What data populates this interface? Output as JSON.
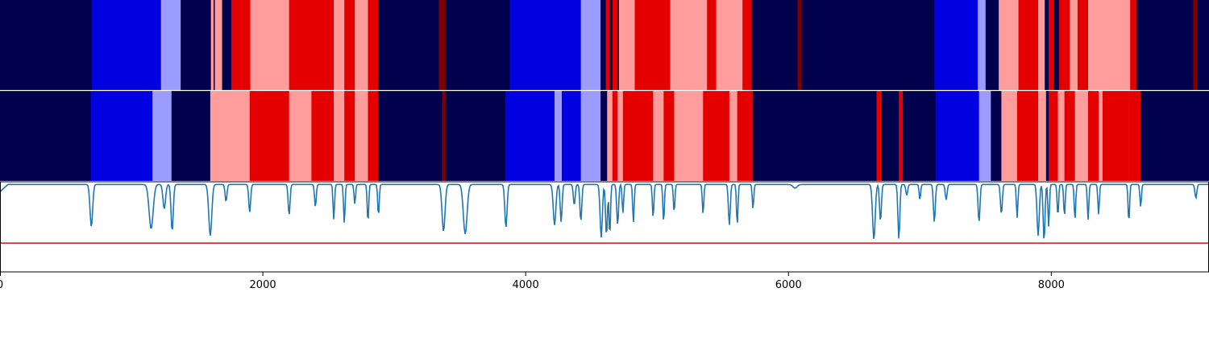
{
  "chart_data": [
    {
      "type": "heatmap",
      "panel": "top-segmentation",
      "x_range": [
        0,
        9200
      ],
      "colors": {
        "0": "#00004c",
        "1": "#0000e0",
        "2": "#9c9cff",
        "3": "#ff9c9c",
        "4": "#e50000",
        "5": "#800000"
      },
      "segments": [
        [
          0,
          700,
          0
        ],
        [
          700,
          1225,
          1
        ],
        [
          1225,
          1375,
          2
        ],
        [
          1375,
          1605,
          0
        ],
        [
          1605,
          1625,
          3
        ],
        [
          1625,
          1635,
          0
        ],
        [
          1635,
          1690,
          3
        ],
        [
          1690,
          1760,
          0
        ],
        [
          1760,
          1905,
          4
        ],
        [
          1905,
          2200,
          3
        ],
        [
          2200,
          2370,
          4
        ],
        [
          2370,
          2540,
          4
        ],
        [
          2540,
          2620,
          3
        ],
        [
          2620,
          2700,
          4
        ],
        [
          2700,
          2800,
          3
        ],
        [
          2800,
          2880,
          4
        ],
        [
          2880,
          3340,
          0
        ],
        [
          3340,
          3390,
          5
        ],
        [
          3390,
          3880,
          0
        ],
        [
          3880,
          4420,
          1
        ],
        [
          4420,
          4570,
          2
        ],
        [
          4570,
          4610,
          0
        ],
        [
          4610,
          4640,
          4
        ],
        [
          4640,
          4660,
          0
        ],
        [
          4660,
          4700,
          4
        ],
        [
          4700,
          4710,
          0
        ],
        [
          4710,
          4830,
          3
        ],
        [
          4830,
          5100,
          4
        ],
        [
          5100,
          5380,
          3
        ],
        [
          5380,
          5450,
          4
        ],
        [
          5450,
          5650,
          3
        ],
        [
          5650,
          5720,
          4
        ],
        [
          5720,
          6070,
          0
        ],
        [
          6070,
          6100,
          5
        ],
        [
          6100,
          7110,
          0
        ],
        [
          7110,
          7440,
          1
        ],
        [
          7440,
          7500,
          2
        ],
        [
          7500,
          7600,
          0
        ],
        [
          7600,
          7750,
          3
        ],
        [
          7750,
          7900,
          4
        ],
        [
          7900,
          7950,
          3
        ],
        [
          7950,
          7980,
          0
        ],
        [
          7980,
          8020,
          4
        ],
        [
          8020,
          8060,
          0
        ],
        [
          8060,
          8140,
          4
        ],
        [
          8140,
          8200,
          3
        ],
        [
          8200,
          8280,
          4
        ],
        [
          8280,
          8600,
          3
        ],
        [
          8600,
          8650,
          4
        ],
        [
          8650,
          9080,
          0
        ],
        [
          9080,
          9110,
          5
        ],
        [
          9110,
          9200,
          0
        ]
      ]
    },
    {
      "type": "heatmap",
      "panel": "middle-segmentation",
      "x_range": [
        0,
        9200
      ],
      "colors": {
        "0": "#00004c",
        "1": "#0000e0",
        "2": "#9c9cff",
        "3": "#ff9c9c",
        "4": "#e50000",
        "5": "#800000"
      },
      "segments": [
        [
          0,
          690,
          0
        ],
        [
          690,
          1160,
          1
        ],
        [
          1160,
          1305,
          2
        ],
        [
          1305,
          1600,
          0
        ],
        [
          1600,
          1900,
          3
        ],
        [
          1900,
          2200,
          4
        ],
        [
          2200,
          2370,
          3
        ],
        [
          2370,
          2540,
          4
        ],
        [
          2540,
          2620,
          3
        ],
        [
          2620,
          2700,
          4
        ],
        [
          2700,
          2800,
          3
        ],
        [
          2800,
          2880,
          4
        ],
        [
          2880,
          3365,
          0
        ],
        [
          3365,
          3390,
          5
        ],
        [
          3390,
          3845,
          0
        ],
        [
          3845,
          4220,
          1
        ],
        [
          4220,
          4275,
          2
        ],
        [
          4275,
          4420,
          1
        ],
        [
          4420,
          4570,
          2
        ],
        [
          4570,
          4620,
          0
        ],
        [
          4620,
          4660,
          3
        ],
        [
          4660,
          4700,
          4
        ],
        [
          4700,
          4740,
          3
        ],
        [
          4740,
          4820,
          4
        ],
        [
          4820,
          4970,
          4
        ],
        [
          4970,
          5050,
          3
        ],
        [
          5050,
          5130,
          4
        ],
        [
          5130,
          5350,
          3
        ],
        [
          5350,
          5550,
          4
        ],
        [
          5550,
          5610,
          3
        ],
        [
          5610,
          5730,
          4
        ],
        [
          5730,
          6670,
          0
        ],
        [
          6670,
          6710,
          4
        ],
        [
          6710,
          6840,
          0
        ],
        [
          6840,
          6870,
          4
        ],
        [
          6870,
          7120,
          0
        ],
        [
          7120,
          7450,
          1
        ],
        [
          7450,
          7540,
          2
        ],
        [
          7540,
          7620,
          0
        ],
        [
          7620,
          7740,
          3
        ],
        [
          7740,
          7900,
          4
        ],
        [
          7900,
          7960,
          3
        ],
        [
          7960,
          7980,
          0
        ],
        [
          7980,
          8050,
          4
        ],
        [
          8050,
          8100,
          3
        ],
        [
          8100,
          8180,
          4
        ],
        [
          8180,
          8280,
          3
        ],
        [
          8280,
          8360,
          4
        ],
        [
          8360,
          8390,
          3
        ],
        [
          8390,
          8590,
          4
        ],
        [
          8590,
          8680,
          4
        ],
        [
          8680,
          9200,
          0
        ]
      ]
    },
    {
      "type": "line",
      "panel": "signal",
      "xlim": [
        0,
        9200
      ],
      "ylim": [
        0,
        1
      ],
      "baseline": 0.97,
      "series_color": "#1f77b4",
      "threshold": {
        "value": 0.32,
        "color": "#d62728"
      },
      "dips": [
        [
          695,
          0.5,
          14
        ],
        [
          1150,
          0.48,
          22
        ],
        [
          1250,
          0.7,
          14
        ],
        [
          1310,
          0.45,
          12
        ],
        [
          1600,
          0.4,
          16
        ],
        [
          1720,
          0.78,
          10
        ],
        [
          1900,
          0.66,
          10
        ],
        [
          2200,
          0.63,
          10
        ],
        [
          2400,
          0.72,
          9
        ],
        [
          2540,
          0.58,
          8
        ],
        [
          2620,
          0.54,
          8
        ],
        [
          2700,
          0.75,
          8
        ],
        [
          2800,
          0.55,
          8
        ],
        [
          2880,
          0.62,
          8
        ],
        [
          3375,
          0.45,
          16
        ],
        [
          3540,
          0.42,
          20
        ],
        [
          3850,
          0.49,
          12
        ],
        [
          4220,
          0.52,
          14
        ],
        [
          4270,
          0.55,
          10
        ],
        [
          4370,
          0.74,
          10
        ],
        [
          4420,
          0.56,
          10
        ],
        [
          4575,
          0.38,
          12
        ],
        [
          4615,
          0.4,
          10
        ],
        [
          4640,
          0.4,
          8
        ],
        [
          4700,
          0.52,
          10
        ],
        [
          4740,
          0.65,
          8
        ],
        [
          4820,
          0.55,
          8
        ],
        [
          4970,
          0.6,
          8
        ],
        [
          5050,
          0.55,
          8
        ],
        [
          5130,
          0.66,
          8
        ],
        [
          5350,
          0.64,
          8
        ],
        [
          5550,
          0.52,
          10
        ],
        [
          5610,
          0.52,
          8
        ],
        [
          5730,
          0.7,
          8
        ],
        [
          6050,
          0.93,
          22
        ],
        [
          6650,
          0.36,
          14
        ],
        [
          6700,
          0.56,
          10
        ],
        [
          6840,
          0.36,
          10
        ],
        [
          6900,
          0.85,
          10
        ],
        [
          7000,
          0.8,
          8
        ],
        [
          7110,
          0.55,
          10
        ],
        [
          7200,
          0.8,
          10
        ],
        [
          7450,
          0.55,
          10
        ],
        [
          7620,
          0.64,
          10
        ],
        [
          7740,
          0.6,
          8
        ],
        [
          7900,
          0.4,
          12
        ],
        [
          7945,
          0.34,
          10
        ],
        [
          7980,
          0.5,
          8
        ],
        [
          8050,
          0.62,
          8
        ],
        [
          8100,
          0.62,
          8
        ],
        [
          8180,
          0.58,
          8
        ],
        [
          8280,
          0.58,
          8
        ],
        [
          8360,
          0.64,
          8
        ],
        [
          8590,
          0.55,
          8
        ],
        [
          8680,
          0.72,
          8
        ],
        [
          9100,
          0.82,
          10
        ]
      ]
    }
  ],
  "x_axis": {
    "ticks": [
      0,
      2000,
      4000,
      6000,
      8000
    ],
    "tick_labels": [
      "0",
      "2000",
      "4000",
      "6000",
      "8000"
    ]
  }
}
